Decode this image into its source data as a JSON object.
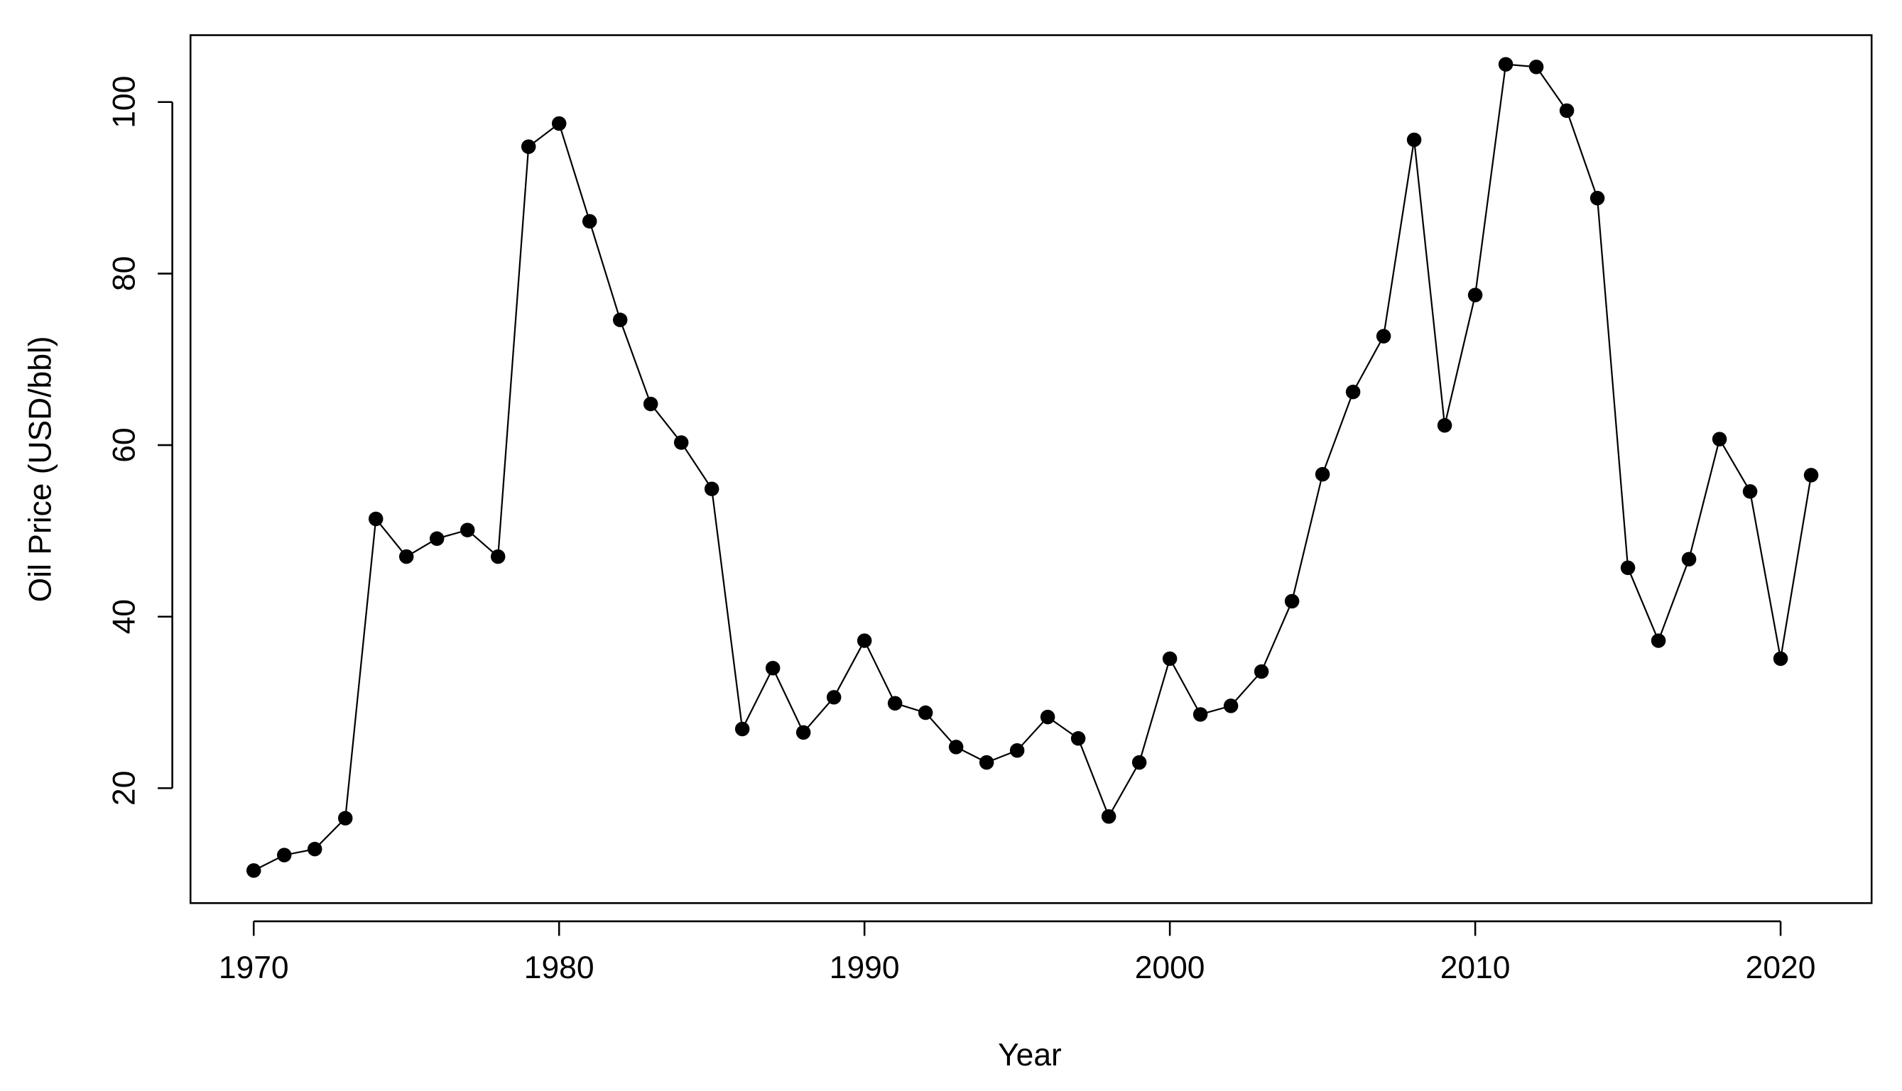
{
  "chart_data": {
    "type": "line",
    "x_label": "Year",
    "y_label": "Oil Price (USD/bbl)",
    "x": [
      1970,
      1971,
      1972,
      1973,
      1974,
      1975,
      1976,
      1977,
      1978,
      1979,
      1980,
      1981,
      1982,
      1983,
      1984,
      1985,
      1986,
      1987,
      1988,
      1989,
      1990,
      1991,
      1992,
      1993,
      1994,
      1995,
      1996,
      1997,
      1998,
      1999,
      2000,
      2001,
      2002,
      2003,
      2004,
      2005,
      2006,
      2007,
      2008,
      2009,
      2010,
      2011,
      2012,
      2013,
      2014,
      2015,
      2016,
      2017,
      2018,
      2019,
      2020,
      2021
    ],
    "values": [
      10.4,
      12.2,
      12.9,
      16.5,
      51.4,
      47.0,
      49.1,
      50.1,
      47.0,
      94.8,
      97.5,
      86.1,
      74.6,
      64.8,
      60.3,
      54.9,
      26.9,
      34.0,
      26.5,
      30.6,
      37.2,
      29.9,
      28.8,
      24.8,
      23.0,
      24.4,
      28.3,
      25.8,
      16.7,
      23.0,
      35.1,
      28.6,
      29.6,
      33.6,
      41.8,
      56.6,
      66.2,
      72.7,
      95.6,
      62.3,
      77.5,
      104.4,
      104.1,
      99.0,
      88.8,
      45.7,
      37.2,
      46.7,
      60.7,
      54.6,
      35.1,
      56.5
    ],
    "color": "#000000",
    "xlim": [
      1967.93,
      2022.98
    ],
    "xticks": [
      1970,
      1980,
      1990,
      2000,
      2010,
      2020
    ],
    "ylim": [
      6.6,
      107.8
    ],
    "yticks": [
      20,
      40,
      60,
      80,
      100
    ]
  }
}
